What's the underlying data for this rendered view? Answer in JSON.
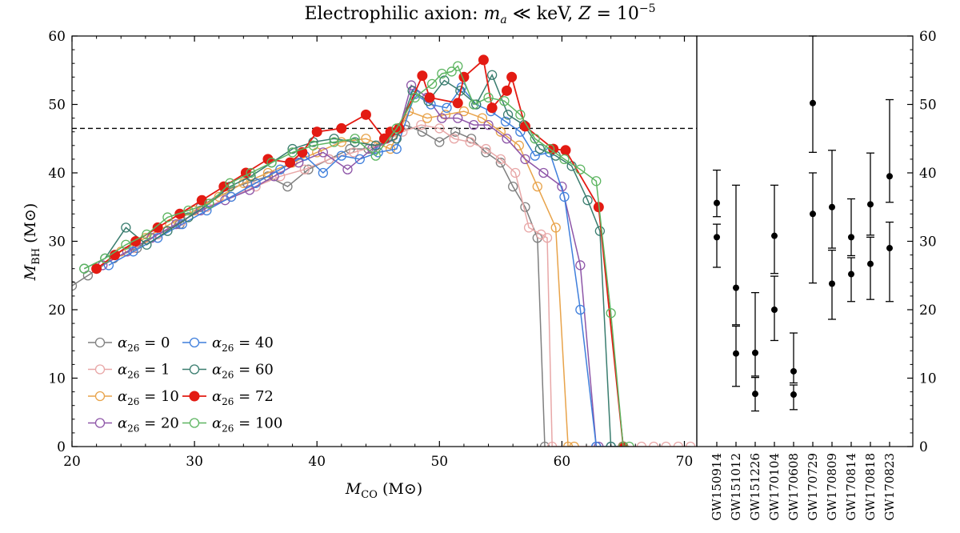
{
  "chart_data": [
    {
      "type": "line",
      "title": "Electrophilic axion: m_a ≪ keV, Z = 10^-5",
      "xlabel": "M_CO (M⊙)",
      "ylabel": "M_BH (M⊙)",
      "xlim": [
        20,
        71
      ],
      "ylim": [
        0,
        60
      ],
      "xticks": [
        20,
        30,
        40,
        50,
        60,
        70
      ],
      "yticks": [
        0,
        10,
        20,
        30,
        40,
        50,
        60
      ],
      "legend": {
        "placement": "lower-left",
        "columns": 2
      },
      "reference_line": {
        "y": 46.5,
        "style": "dashed",
        "color": "#000000"
      },
      "series": [
        {
          "name": "α_26 = 0",
          "color": "#7f7f7f",
          "marker": "open-circle",
          "x": [
            20,
            21.3,
            23.4,
            25.3,
            27,
            28.8,
            30.5,
            32.5,
            34.3,
            36,
            37.6,
            39.3,
            41,
            42.7,
            44.2,
            45.7,
            47.2,
            48.6,
            50,
            51.3,
            52.6,
            53.8,
            55,
            56,
            57,
            58,
            58.6
          ],
          "y": [
            23.5,
            25,
            27.5,
            29,
            31,
            32.5,
            35,
            37.5,
            38.5,
            39.5,
            38,
            40.5,
            42,
            43.5,
            43.5,
            45,
            47,
            46,
            44.5,
            46,
            45,
            43,
            41.5,
            38,
            35,
            30.5,
            0
          ]
        },
        {
          "name": "α_26 = 1",
          "color": "#e8a7a7",
          "marker": "open-circle",
          "x": [
            22.5,
            25,
            27,
            29,
            31,
            33,
            35,
            37,
            39,
            41,
            43,
            45,
            47,
            48.5,
            50,
            51.2,
            52.5,
            53.8,
            55,
            56.2,
            57.3,
            58.3,
            58.8,
            59.2,
            66.5,
            67.5,
            68.5,
            69.5,
            70.5
          ],
          "y": [
            26.5,
            29,
            31,
            33,
            35,
            36.5,
            38,
            39.5,
            40.5,
            42,
            43,
            44,
            46,
            47,
            46.5,
            45,
            44.5,
            43.5,
            42,
            40,
            32,
            31,
            30.5,
            0,
            0,
            0,
            0,
            0,
            0
          ]
        },
        {
          "name": "α_26 = 10",
          "color": "#e8a34a",
          "marker": "open-circle",
          "x": [
            22,
            24,
            26,
            28,
            30,
            32,
            34,
            36,
            38,
            40,
            42,
            44,
            46,
            47.5,
            49,
            50.5,
            52,
            53.5,
            55,
            56.5,
            58,
            59.5,
            60.5,
            61
          ],
          "y": [
            26,
            28.5,
            30.5,
            32.5,
            34.5,
            36.5,
            38.5,
            40,
            41.5,
            43,
            44.5,
            45,
            43.5,
            49,
            48,
            48.5,
            49,
            48,
            46,
            44,
            38,
            32,
            0,
            0
          ]
        },
        {
          "name": "α_26 = 20",
          "color": "#8e56a8",
          "marker": "open-circle",
          "x": [
            22.5,
            24.5,
            26.5,
            28.5,
            30.5,
            32.5,
            34.5,
            36.5,
            38.5,
            40.5,
            42.5,
            44.5,
            46.5,
            47.7,
            49,
            50.2,
            51.5,
            52.8,
            54,
            55.5,
            57,
            58.5,
            60,
            61.5,
            62.8,
            63
          ],
          "y": [
            26.5,
            28.5,
            30.5,
            32.5,
            34.5,
            36,
            37.5,
            39.5,
            41.5,
            43,
            40.5,
            43.5,
            45,
            52.8,
            51,
            48,
            48,
            47,
            47,
            45,
            42,
            40,
            38,
            26.5,
            0,
            0
          ]
        },
        {
          "name": "α_26 = 40",
          "color": "#3f7fdc",
          "marker": "open-circle",
          "x": [
            23,
            25,
            27,
            29,
            31,
            33,
            35,
            37,
            39,
            40.5,
            42,
            43.5,
            45,
            46.5,
            48,
            49.3,
            50.6,
            51.8,
            53,
            54.2,
            55.4,
            56.6,
            57.8,
            59,
            60.2,
            61.5,
            62.8,
            64,
            65
          ],
          "y": [
            26.5,
            28.5,
            30.5,
            32.5,
            34.5,
            36.5,
            38.5,
            40.5,
            42.5,
            40,
            42.5,
            42,
            43,
            43.5,
            51.5,
            50,
            49.5,
            52.5,
            50,
            49,
            47.5,
            46,
            42.5,
            43,
            36.5,
            20,
            0,
            0,
            0
          ]
        },
        {
          "name": "α_26 = 60",
          "color": "#3a7d6f",
          "marker": "open-circle",
          "x": [
            21,
            22.7,
            24.4,
            26.1,
            27.8,
            29.5,
            31.2,
            32.9,
            34.6,
            36.3,
            38,
            39.7,
            41.4,
            43.1,
            44.8,
            46.5,
            47.8,
            49.1,
            50.4,
            51.7,
            53,
            54.3,
            55.6,
            56.9,
            58.2,
            59.5,
            60.8,
            62.1,
            63.1,
            64,
            65
          ],
          "y": [
            26,
            27.5,
            32,
            29.5,
            31.5,
            33.5,
            35.5,
            38,
            39.5,
            41.5,
            43.5,
            44.5,
            45,
            44.5,
            44,
            45,
            52,
            50.5,
            53.5,
            52,
            50,
            54.3,
            48.5,
            47,
            43.5,
            42.5,
            41,
            36,
            31.5,
            0,
            0
          ]
        },
        {
          "name": "α_26 = 72",
          "color": "#e31b13",
          "marker": "filled-circle",
          "x": [
            22,
            23.5,
            25.2,
            27,
            28.8,
            30.6,
            32.4,
            34.2,
            36,
            37.8,
            38.8,
            40,
            42,
            44,
            45.5,
            46,
            46.7,
            48.6,
            49.2,
            51.5,
            52,
            53.6,
            54.3,
            55.5,
            55.9,
            57,
            59.3,
            60.3,
            63,
            65
          ],
          "y": [
            26,
            28,
            30,
            32,
            34,
            36,
            38,
            40,
            42,
            41.5,
            43,
            46,
            46.5,
            48.5,
            45,
            46,
            46.5,
            54.2,
            51,
            50.2,
            54,
            56.5,
            49.5,
            52,
            54,
            46.8,
            43.5,
            43.3,
            35,
            0
          ]
        },
        {
          "name": "α_26 = 100",
          "color": "#5db561",
          "marker": "open-circle",
          "x": [
            21,
            22.7,
            24.4,
            26.1,
            27.8,
            29.5,
            31.2,
            32.9,
            34.6,
            36.3,
            38,
            39.7,
            41.4,
            43.1,
            44.8,
            46.5,
            48,
            49.4,
            50.2,
            51,
            51.5,
            52.8,
            54,
            55.3,
            56.6,
            57.8,
            59,
            60.2,
            61.5,
            62.8,
            64,
            65,
            65.5
          ],
          "y": [
            26,
            27.5,
            29.5,
            31,
            33.5,
            34.5,
            35.5,
            38.5,
            40,
            41.5,
            43,
            44,
            44.5,
            45,
            42.5,
            46.5,
            51,
            53,
            54.5,
            54.8,
            55.6,
            50,
            51,
            50.5,
            48.5,
            45,
            43.5,
            42,
            40.5,
            38.8,
            19.5,
            0,
            0
          ]
        }
      ]
    },
    {
      "type": "scatter",
      "ylim": [
        0,
        60
      ],
      "yticks": [
        0,
        10,
        20,
        30,
        40,
        50,
        60
      ],
      "categories": [
        "GW150914",
        "GW151012",
        "GW151226",
        "GW170104",
        "GW170608",
        "GW170729",
        "GW170809",
        "GW170814",
        "GW170818",
        "GW170823"
      ],
      "events": [
        {
          "name": "GW150914",
          "points": [
            35.6,
            30.6
          ],
          "errbars": [
            [
              33.6,
              40.4
            ],
            [
              32.5,
              26.2
            ]
          ]
        },
        {
          "name": "GW151012",
          "points": [
            23.2,
            13.6
          ],
          "errbars": [
            [
              17.8,
              38.2
            ],
            [
              17.6,
              8.8
            ]
          ]
        },
        {
          "name": "GW151226",
          "points": [
            13.7,
            7.7
          ],
          "errbars": [
            [
              10.3,
              22.5
            ],
            [
              10.1,
              5.2
            ]
          ]
        },
        {
          "name": "GW170104",
          "points": [
            30.8,
            20.0
          ],
          "errbars": [
            [
              25.3,
              38.2
            ],
            [
              24.9,
              15.5
            ]
          ]
        },
        {
          "name": "GW170608",
          "points": [
            11.0,
            7.6
          ],
          "errbars": [
            [
              9.3,
              16.6
            ],
            [
              9.0,
              5.4
            ]
          ]
        },
        {
          "name": "GW170729",
          "points": [
            50.2,
            34.0
          ],
          "errbars": [
            [
              43.0,
              60.0
            ],
            [
              40.0,
              23.9
            ]
          ]
        },
        {
          "name": "GW170809",
          "points": [
            35.0,
            23.8
          ],
          "errbars": [
            [
              29.0,
              43.3
            ],
            [
              28.7,
              18.6
            ]
          ]
        },
        {
          "name": "GW170814",
          "points": [
            30.6,
            25.2
          ],
          "errbars": [
            [
              27.9,
              36.2
            ],
            [
              27.6,
              21.2
            ]
          ]
        },
        {
          "name": "GW170818",
          "points": [
            35.4,
            26.7
          ],
          "errbars": [
            [
              30.9,
              42.9
            ],
            [
              30.6,
              21.5
            ]
          ]
        },
        {
          "name": "GW170823",
          "points": [
            39.5,
            29.0
          ],
          "errbars": [
            [
              35.7,
              50.7
            ],
            [
              32.8,
              21.2
            ]
          ]
        }
      ]
    }
  ]
}
